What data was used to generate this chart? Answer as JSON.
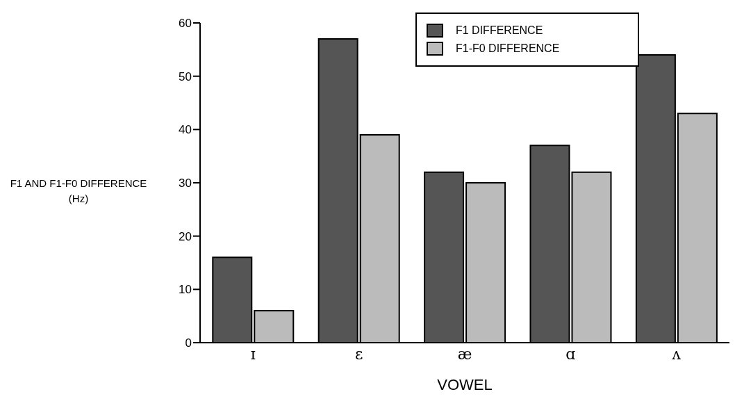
{
  "chart_data": {
    "type": "bar",
    "xlabel": "VOWEL",
    "ylabel": "F1 AND F1-F0 DIFFERENCE (Hz)",
    "categories": [
      "ɪ",
      "ɛ",
      "æ",
      "ɑ",
      "ʌ"
    ],
    "series": [
      {
        "name": "F1 DIFFERENCE",
        "color": "#555555",
        "values": [
          16,
          57,
          32,
          37,
          54
        ]
      },
      {
        "name": "F1-F0 DIFFERENCE",
        "color": "#bbbbbb",
        "values": [
          6,
          39,
          30,
          32,
          43
        ]
      }
    ],
    "ylim": [
      0,
      60
    ],
    "yticks": [
      0,
      10,
      20,
      30,
      40,
      50,
      60
    ],
    "grid": false,
    "legend": "top right"
  }
}
